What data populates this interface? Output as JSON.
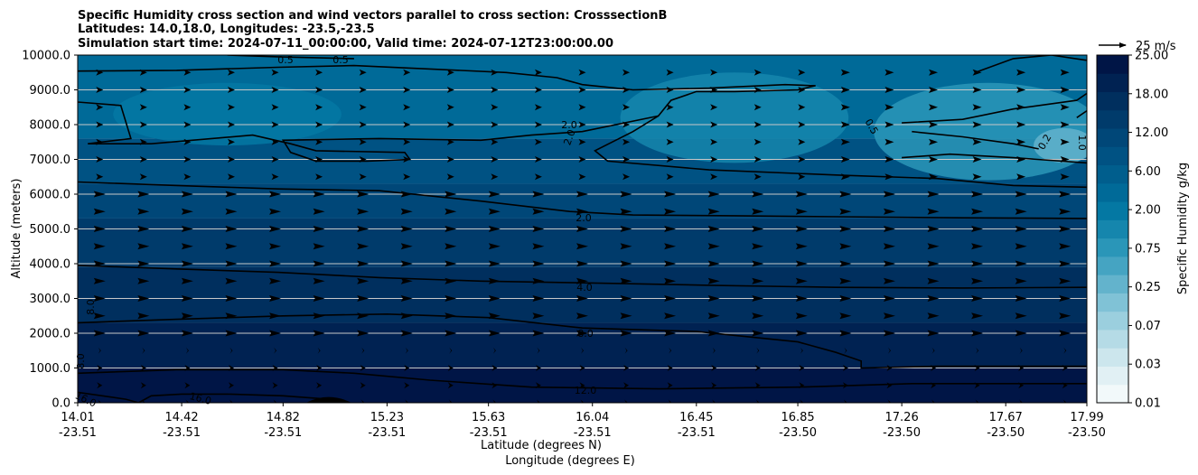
{
  "chart_data": {
    "type": "heatmap",
    "subtype": "filled-contour cross section with line contours and wind vectors",
    "title_lines": [
      "Specific Humidity cross section and wind vectors parallel to cross section: CrosssectionB",
      "Latitudes: 14.0,18.0, Longitudes: -23.5,-23.5",
      "Simulation start time: 2024-07-11_00:00:00, Valid time: 2024-07-12T23:00:00.00"
    ],
    "ylabel": "Altitude (meters)",
    "xlabel_lines": [
      "Latitude (degrees N)",
      "Longitude (degrees E)"
    ],
    "ylim": [
      0,
      10000
    ],
    "y_ticks": [
      "0.0",
      "1000.0",
      "2000.0",
      "3000.0",
      "4000.0",
      "5000.0",
      "6000.0",
      "7000.0",
      "8000.0",
      "9000.0",
      "10000.0"
    ],
    "y_tick_values": [
      0,
      1000,
      2000,
      3000,
      4000,
      5000,
      6000,
      7000,
      8000,
      9000,
      10000
    ],
    "x_ticks": [
      {
        "lat": "14.01",
        "lon": "-23.51",
        "value": 14.01
      },
      {
        "lat": "14.42",
        "lon": "-23.51",
        "value": 14.42
      },
      {
        "lat": "14.82",
        "lon": "-23.51",
        "value": 14.82
      },
      {
        "lat": "15.23",
        "lon": "-23.51",
        "value": 15.23
      },
      {
        "lat": "15.63",
        "lon": "-23.51",
        "value": 15.63
      },
      {
        "lat": "16.04",
        "lon": "-23.51",
        "value": 16.04
      },
      {
        "lat": "16.45",
        "lon": "-23.51",
        "value": 16.45
      },
      {
        "lat": "16.85",
        "lon": "-23.50",
        "value": 16.85
      },
      {
        "lat": "17.26",
        "lon": "-23.50",
        "value": 17.26
      },
      {
        "lat": "17.67",
        "lon": "-23.50",
        "value": 17.67
      },
      {
        "lat": "17.99",
        "lon": "-23.50",
        "value": 17.99
      }
    ],
    "xlim": [
      14.01,
      17.99
    ],
    "grid": "horizontal",
    "colorbar": {
      "label": "Specific Humidity g/kg",
      "tick_labels": [
        "0.01",
        "0.03",
        "0.07",
        "0.25",
        "0.75",
        "2.00",
        "6.00",
        "12.00",
        "18.00",
        "25.00"
      ],
      "colors": [
        "#f2f9fa",
        "#e1f0f4",
        "#cce6ed",
        "#b5dbe6",
        "#9bcfde",
        "#80c2d6",
        "#63b3cc",
        "#45a4c2",
        "#2a96b8",
        "#1586ad",
        "#0478a3",
        "#006a98",
        "#005e8d",
        "#005283",
        "#004778",
        "#003b6b",
        "#002f5e",
        "#002252",
        "#001546"
      ]
    },
    "quiver_key": {
      "label": "25 m/s",
      "value_ms": 25
    },
    "contour_labels": [
      "0.5",
      "0.5",
      "2.0",
      "2.0",
      "0.5",
      "0.2",
      "1.0",
      "2.0",
      "4.0",
      "8.0",
      "8.0",
      "12.0",
      "8.0",
      "16.0",
      "16.0"
    ],
    "humidity_contours": [
      {
        "level": "0.5",
        "points": [
          [
            14.01,
            9540
          ],
          [
            14.4,
            9560
          ],
          [
            14.8,
            9650
          ],
          [
            15.1,
            9700
          ],
          [
            15.4,
            9600
          ],
          [
            15.7,
            9500
          ],
          [
            15.9,
            9350
          ],
          [
            16.0,
            9150
          ],
          [
            16.2,
            9000
          ],
          [
            16.5,
            9050
          ],
          [
            16.8,
            9150
          ],
          [
            16.92,
            9120
          ],
          [
            16.85,
            9000
          ],
          [
            16.6,
            8950
          ],
          [
            16.45,
            8950
          ],
          [
            16.35,
            8700
          ],
          [
            16.3,
            8250
          ],
          [
            16.2,
            7800
          ],
          [
            16.05,
            7250
          ],
          [
            16.1,
            6950
          ],
          [
            16.5,
            6700
          ],
          [
            17.0,
            6550
          ],
          [
            17.4,
            6450
          ],
          [
            17.7,
            6250
          ],
          [
            17.99,
            6200
          ]
        ]
      },
      {
        "level": "0.5",
        "points": [
          [
            14.01,
            8650
          ],
          [
            14.18,
            8550
          ],
          [
            14.22,
            7600
          ],
          [
            14.05,
            7450
          ],
          [
            14.3,
            7450
          ],
          [
            14.7,
            7700
          ],
          [
            14.85,
            7450
          ],
          [
            14.95,
            7250
          ],
          [
            15.3,
            7200
          ],
          [
            15.32,
            7000
          ],
          [
            15.15,
            6950
          ],
          [
            14.95,
            6950
          ],
          [
            14.85,
            7200
          ],
          [
            14.82,
            7550
          ],
          [
            15.2,
            7600
          ],
          [
            15.6,
            7550
          ],
          [
            15.8,
            7700
          ],
          [
            16.0,
            7800
          ],
          [
            16.3,
            8250
          ]
        ]
      },
      {
        "level": "0.5",
        "points": [
          [
            14.6,
            10000
          ],
          [
            14.8,
            9950
          ],
          [
            15.1,
            9900
          ]
        ]
      },
      {
        "level": "0.5",
        "points": [
          [
            17.26,
            8050
          ],
          [
            17.5,
            8150
          ],
          [
            17.7,
            8450
          ],
          [
            17.95,
            8700
          ],
          [
            17.99,
            8900
          ]
        ]
      },
      {
        "level": "0.2",
        "points": [
          [
            17.26,
            7050
          ],
          [
            17.45,
            7150
          ],
          [
            17.7,
            7050
          ],
          [
            17.99,
            6900
          ]
        ]
      },
      {
        "level": "0.5",
        "points": [
          [
            17.3,
            7800
          ],
          [
            17.5,
            7650
          ],
          [
            17.7,
            7450
          ],
          [
            17.8,
            7300
          ]
        ]
      },
      {
        "level": "0.2",
        "points": [
          [
            17.55,
            9500
          ],
          [
            17.7,
            9900
          ],
          [
            17.85,
            10000
          ],
          [
            17.99,
            9850
          ]
        ]
      },
      {
        "level": "0.2",
        "points": [
          [
            17.95,
            8200
          ],
          [
            17.99,
            8400
          ]
        ]
      },
      {
        "level": "2.0",
        "points": [
          [
            14.01,
            6350
          ],
          [
            14.4,
            6250
          ],
          [
            14.8,
            6150
          ],
          [
            15.2,
            6100
          ],
          [
            15.6,
            5800
          ],
          [
            15.95,
            5500
          ],
          [
            16.2,
            5400
          ],
          [
            16.6,
            5380
          ],
          [
            17.0,
            5350
          ],
          [
            17.5,
            5320
          ],
          [
            17.99,
            5300
          ]
        ]
      },
      {
        "level": "4.0",
        "points": [
          [
            14.01,
            3950
          ],
          [
            14.4,
            3850
          ],
          [
            14.8,
            3750
          ],
          [
            15.2,
            3600
          ],
          [
            15.6,
            3500
          ],
          [
            16.0,
            3450
          ],
          [
            16.5,
            3380
          ],
          [
            17.0,
            3320
          ],
          [
            17.5,
            3300
          ],
          [
            17.99,
            3320
          ]
        ]
      },
      {
        "level": "8.0",
        "points": [
          [
            14.01,
            2300
          ],
          [
            14.4,
            2400
          ],
          [
            14.82,
            2500
          ],
          [
            15.23,
            2550
          ],
          [
            15.63,
            2450
          ],
          [
            16.0,
            2150
          ],
          [
            16.45,
            2050
          ],
          [
            16.85,
            1750
          ],
          [
            17.0,
            1450
          ],
          [
            17.1,
            1200
          ],
          [
            17.1,
            1000
          ],
          [
            17.4,
            1050
          ],
          [
            17.7,
            1050
          ],
          [
            17.99,
            1050
          ]
        ]
      },
      {
        "level": "12.0",
        "points": [
          [
            14.01,
            850
          ],
          [
            14.4,
            950
          ],
          [
            14.82,
            950
          ],
          [
            15.1,
            850
          ],
          [
            15.4,
            650
          ],
          [
            15.8,
            450
          ],
          [
            16.3,
            400
          ],
          [
            16.85,
            450
          ],
          [
            17.3,
            550
          ],
          [
            17.7,
            550
          ],
          [
            17.99,
            550
          ]
        ]
      },
      {
        "level": "16.0",
        "points": [
          [
            14.01,
            300
          ],
          [
            14.2,
            100
          ],
          [
            14.25,
            0
          ]
        ]
      },
      {
        "level": "16.0",
        "points": [
          [
            14.25,
            0
          ],
          [
            14.3,
            200
          ],
          [
            14.42,
            250
          ],
          [
            14.6,
            250
          ],
          [
            14.82,
            200
          ],
          [
            15.0,
            100
          ]
        ]
      }
    ],
    "terrain_bump": {
      "x_range": [
        14.91,
        15.09
      ],
      "peak_altitude_m": 200
    }
  }
}
